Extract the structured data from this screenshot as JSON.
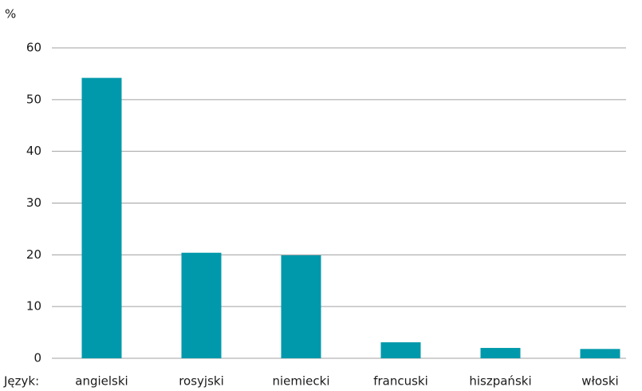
{
  "chart_data": {
    "type": "bar",
    "y_label": "%",
    "x_label": "Język:",
    "categories": [
      "angielski",
      "rosyjski",
      "niemiecki",
      "francuski",
      "hiszpański",
      "włoski"
    ],
    "values": [
      54.2,
      20.4,
      19.9,
      3.1,
      2.0,
      1.8
    ],
    "color": "#0099ab",
    "ylim": [
      0,
      60
    ],
    "yticks": [
      0,
      10,
      20,
      30,
      40,
      50,
      60
    ],
    "grid": true
  }
}
